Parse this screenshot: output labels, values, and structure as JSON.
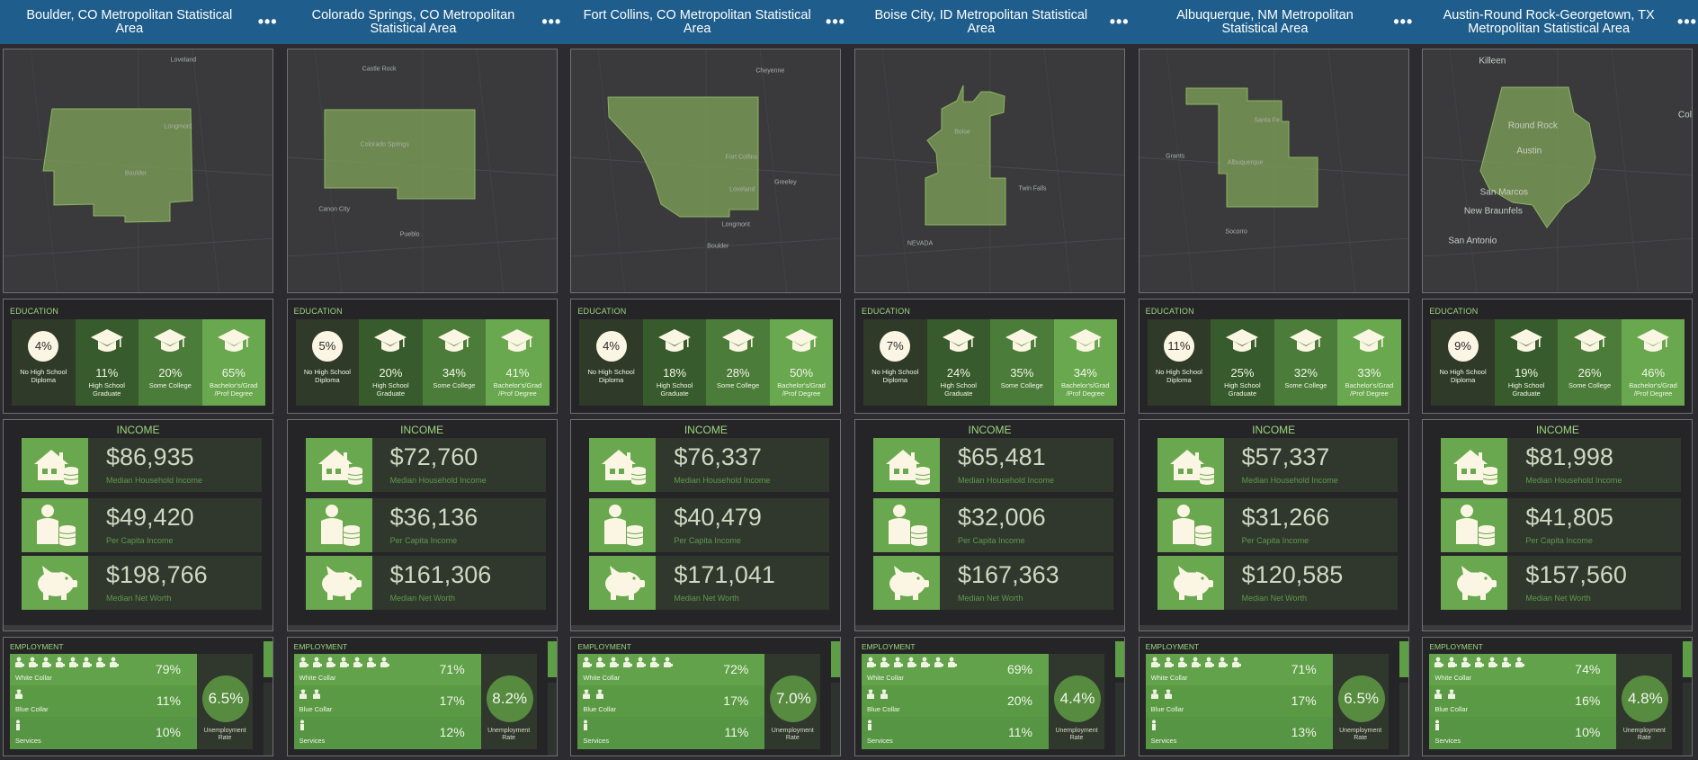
{
  "education_labels": [
    "No High School Diploma",
    "High School Graduate",
    "Some College",
    "Bachelor's/Grad /Prof Degree"
  ],
  "income_labels": [
    "Median Household Income",
    "Per Capita Income",
    "Median Net Worth"
  ],
  "employment_labels": [
    "White Collar",
    "Blue Collar",
    "Services"
  ],
  "section_titles": {
    "education": "EDUCATION",
    "income": "INCOME",
    "employment": "EMPLOYMENT",
    "unemployment_rate": "Unemployment Rate"
  },
  "menu_glyph": "•••",
  "colors": {
    "header": "#1f5e8c",
    "accent_green": "#9bd77a",
    "edu_shades": [
      "#2f3a29",
      "#385b2d",
      "#4b7c3a",
      "#69a84f"
    ]
  },
  "columns": [
    {
      "title": "Boulder, CO Metropolitan Statistical Area",
      "map_labels": [
        "Loveland",
        "Longmont",
        "Boulder"
      ],
      "education": [
        "4%",
        "11%",
        "20%",
        "65%"
      ],
      "income": [
        "$86,935",
        "$49,420",
        "$198,766"
      ],
      "employment": {
        "white_collar": "79%",
        "blue_collar": "11%",
        "services": "10%",
        "unemployment": "6.5%"
      }
    },
    {
      "title": "Colorado Springs, CO Metropolitan Statistical Area",
      "map_labels": [
        "Castle Rock",
        "Colorado Springs",
        "Canon City",
        "Pueblo"
      ],
      "education": [
        "5%",
        "20%",
        "34%",
        "41%"
      ],
      "income": [
        "$72,760",
        "$36,136",
        "$161,306"
      ],
      "employment": {
        "white_collar": "71%",
        "blue_collar": "17%",
        "services": "12%",
        "unemployment": "8.2%"
      }
    },
    {
      "title": "Fort Collins, CO Metropolitan Statistical Area",
      "map_labels": [
        "Cheyenne",
        "Fort Collins",
        "Loveland",
        "Greeley",
        "Longmont",
        "Boulder"
      ],
      "education": [
        "4%",
        "18%",
        "28%",
        "50%"
      ],
      "income": [
        "$76,337",
        "$40,479",
        "$171,041"
      ],
      "employment": {
        "white_collar": "72%",
        "blue_collar": "17%",
        "services": "11%",
        "unemployment": "7.0%"
      }
    },
    {
      "title": "Boise City, ID Metropolitan Statistical Area",
      "map_labels": [
        "Boise",
        "Twin Falls",
        "NEVADA"
      ],
      "education": [
        "7%",
        "24%",
        "35%",
        "34%"
      ],
      "income": [
        "$65,481",
        "$32,006",
        "$167,363"
      ],
      "employment": {
        "white_collar": "69%",
        "blue_collar": "20%",
        "services": "11%",
        "unemployment": "4.4%"
      }
    },
    {
      "title": "Albuquerque, NM Metropolitan Statistical Area",
      "map_labels": [
        "Santa Fe",
        "Grants",
        "Albuquerque",
        "Socorro"
      ],
      "education": [
        "11%",
        "25%",
        "32%",
        "33%"
      ],
      "income": [
        "$57,337",
        "$31,266",
        "$120,585"
      ],
      "employment": {
        "white_collar": "71%",
        "blue_collar": "17%",
        "services": "13%",
        "unemployment": "6.5%"
      }
    },
    {
      "title": "Austin-Round Rock-Georgetown, TX Metropolitan Statistical Area",
      "map_labels": [
        "Killeen",
        "Round Rock",
        "Austin",
        "San Marcos",
        "New Braunfels",
        "San Antonio",
        "Colle"
      ],
      "education": [
        "9%",
        "19%",
        "26%",
        "46%"
      ],
      "income": [
        "$81,998",
        "$41,805",
        "$157,560"
      ],
      "employment": {
        "white_collar": "74%",
        "blue_collar": "16%",
        "services": "10%",
        "unemployment": "4.8%"
      }
    }
  ]
}
